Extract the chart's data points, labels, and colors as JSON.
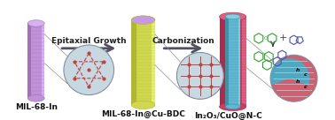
{
  "fig_width": 3.78,
  "fig_height": 1.36,
  "dpi": 100,
  "bg_color": "#ffffff",
  "label1": "MIL-68-In",
  "label2": "MIL-68-In@Cu-BDC",
  "label3": "In₂O₃/CuO@N-C",
  "arrow1_label": "Epitaxial Growth",
  "arrow2_label": "Carbonization",
  "col1_color": "#c090d8",
  "col1_highlight": "#d8b0f0",
  "col1_shadow": "#a070b8",
  "col2_color": "#d0d850",
  "col2_highlight": "#e8f070",
  "col2_shadow": "#b0b830",
  "col2_cap": "#e0e060",
  "col3_outer": "#c84060",
  "col3_outer_hi": "#e06080",
  "col3_outer_sh": "#a03050",
  "col3_inner": "#60b8d0",
  "col3_inner_hi": "#80d0e8",
  "col3_inner_sh": "#4090a8",
  "col3_top_cap": "#80d0e0",
  "circle_bg": "#c8d8e0",
  "circle_edge": "#8090a0",
  "hex_color": "#c04040",
  "hex_dot": "#c04040",
  "grid_color": "#c04040",
  "grid_dot": "#c04040",
  "inset3_pink": "#d06070",
  "inset3_teal": "#50a8c0",
  "arrow_color": "#505060",
  "arrow_label_color": "#202020",
  "label_fontsize": 6.5,
  "arrow_label_fontsize": 6.5,
  "green_ring": "#30a030",
  "blue_ring": "#5050b0",
  "plus_color": "#404040",
  "down_arrow_color": "#404040"
}
